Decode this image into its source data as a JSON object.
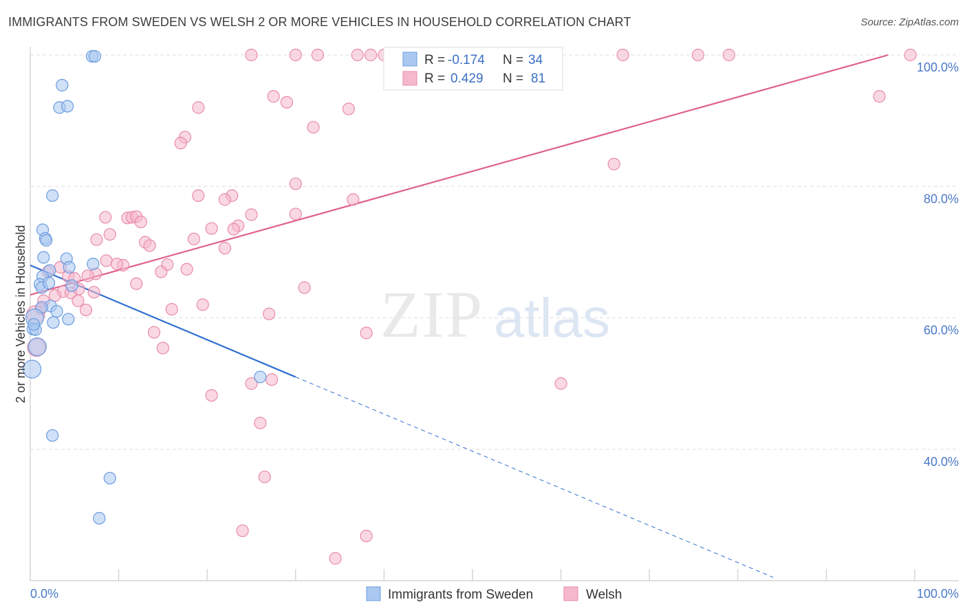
{
  "title": "IMMIGRANTS FROM SWEDEN VS WELSH 2 OR MORE VEHICLES IN HOUSEHOLD CORRELATION CHART",
  "source": "Source: ZipAtlas.com",
  "watermark": {
    "zip": "ZIP",
    "atlas": "atlas"
  },
  "colors": {
    "blue_fill": "#aac8f0",
    "blue_stroke": "#6a9be0",
    "blue_line": "#2f6fd0",
    "pink_fill": "#f5b8cc",
    "pink_stroke": "#e88aa8",
    "pink_line": "#e0608a",
    "tick": "#4a78c8",
    "grid": "#dddddd"
  },
  "legend": {
    "rows": [
      {
        "r_label": "R =",
        "r_value": "-0.174",
        "n_label": "N =",
        "n_value": "34"
      },
      {
        "r_label": "R =",
        "r_value": "0.429",
        "n_label": "N =",
        "n_value": "81"
      }
    ]
  },
  "bottom_legend": [
    "Immigrants from Sweden",
    "Welsh"
  ],
  "chart_data": {
    "type": "scatter",
    "xlabel": "",
    "ylabel": "2 or more Vehicles in Household",
    "xlim": [
      0,
      100
    ],
    "ylim": [
      20,
      100
    ],
    "x_tick_labels": [
      "0.0%",
      "100.0%"
    ],
    "y_tick_labels": [
      "40.0%",
      "60.0%",
      "80.0%",
      "100.0%"
    ],
    "y_ticks": [
      40,
      60,
      80,
      100
    ],
    "grid": true,
    "series": [
      {
        "name": "Immigrants from Sweden",
        "r": -0.174,
        "n": 34,
        "trend": {
          "x0": 0,
          "y0": 68,
          "x1": 30,
          "y1": 51,
          "dash_x1": 84,
          "dash_y1": 20.5
        },
        "points": [
          [
            7,
            99.8
          ],
          [
            7.3,
            99.8
          ],
          [
            3.6,
            95.4
          ],
          [
            3.3,
            92
          ],
          [
            4.2,
            92.2
          ],
          [
            2.5,
            78.6
          ],
          [
            1.4,
            73.4
          ],
          [
            1.7,
            72.1
          ],
          [
            1.8,
            71.8
          ],
          [
            1.5,
            69.2
          ],
          [
            4.1,
            69
          ],
          [
            4.4,
            67.7
          ],
          [
            7.1,
            68.2
          ],
          [
            2.2,
            67.2
          ],
          [
            1.4,
            66.3
          ],
          [
            1.1,
            65.1
          ],
          [
            1.3,
            64.6
          ],
          [
            2.1,
            65.3
          ],
          [
            4.7,
            64.9
          ],
          [
            2.3,
            61.8
          ],
          [
            1.3,
            61.6
          ],
          [
            3.0,
            61
          ],
          [
            4.3,
            59.8
          ],
          [
            2.6,
            59.3
          ],
          [
            0.5,
            60
          ],
          [
            0.3,
            58.3
          ],
          [
            0.6,
            58.2
          ],
          [
            0.8,
            55.6
          ],
          [
            0.2,
            52.2
          ],
          [
            26,
            51
          ],
          [
            2.5,
            42.1
          ],
          [
            9,
            35.6
          ],
          [
            7.8,
            29.5
          ],
          [
            0.4,
            59
          ]
        ]
      },
      {
        "name": "Welsh",
        "r": 0.429,
        "n": 81,
        "trend": {
          "x0": 0,
          "y0": 63.5,
          "x1": 97,
          "y1": 100
        },
        "points": [
          [
            25,
            100
          ],
          [
            30,
            100
          ],
          [
            32.5,
            100
          ],
          [
            37,
            100
          ],
          [
            38.5,
            100
          ],
          [
            40,
            100
          ],
          [
            47,
            100
          ],
          [
            67,
            100
          ],
          [
            75.5,
            100
          ],
          [
            79,
            100
          ],
          [
            99.5,
            100
          ],
          [
            27.5,
            93.7
          ],
          [
            29,
            92.8
          ],
          [
            19,
            92
          ],
          [
            36,
            91.8
          ],
          [
            96,
            93.7
          ],
          [
            32,
            89
          ],
          [
            17.5,
            87.5
          ],
          [
            17,
            86.6
          ],
          [
            66,
            83.4
          ],
          [
            30,
            80.4
          ],
          [
            19,
            78.6
          ],
          [
            22.8,
            78.6
          ],
          [
            36.5,
            78
          ],
          [
            30,
            75.8
          ],
          [
            25,
            75.7
          ],
          [
            8.5,
            75.3
          ],
          [
            11,
            75.2
          ],
          [
            11.5,
            75.3
          ],
          [
            12,
            75.4
          ],
          [
            12.5,
            74.6
          ],
          [
            23.5,
            74
          ],
          [
            20.5,
            73.6
          ],
          [
            23,
            73.5
          ],
          [
            9,
            72.7
          ],
          [
            7.5,
            71.9
          ],
          [
            18.5,
            72
          ],
          [
            13,
            71.5
          ],
          [
            13.5,
            71
          ],
          [
            22,
            70.6
          ],
          [
            8.6,
            68.7
          ],
          [
            10.5,
            68
          ],
          [
            15.5,
            68.1
          ],
          [
            3.4,
            67.7
          ],
          [
            14.8,
            67
          ],
          [
            17.7,
            67.4
          ],
          [
            4.3,
            66.3
          ],
          [
            7.4,
            66.7
          ],
          [
            6.5,
            66.4
          ],
          [
            2.0,
            67
          ],
          [
            5.0,
            66
          ],
          [
            12,
            65.2
          ],
          [
            31,
            64.6
          ],
          [
            3.7,
            64
          ],
          [
            7.2,
            63.9
          ],
          [
            4.6,
            63.8
          ],
          [
            1.5,
            62.6
          ],
          [
            5.4,
            62.6
          ],
          [
            6.3,
            61.2
          ],
          [
            1.2,
            61.4
          ],
          [
            19.5,
            62
          ],
          [
            16,
            61.3
          ],
          [
            27,
            60.6
          ],
          [
            0.6,
            60.5
          ],
          [
            14,
            57.8
          ],
          [
            38,
            57.7
          ],
          [
            15,
            55.4
          ],
          [
            0.7,
            55.5
          ],
          [
            27.3,
            50.6
          ],
          [
            25,
            50
          ],
          [
            60,
            50
          ],
          [
            20.5,
            48.2
          ],
          [
            26,
            44
          ],
          [
            26.5,
            35.8
          ],
          [
            24,
            27.6
          ],
          [
            38,
            26.8
          ],
          [
            34.5,
            23.4
          ],
          [
            22,
            78
          ],
          [
            9.8,
            68.2
          ],
          [
            5.5,
            64.4
          ],
          [
            2.8,
            63.4
          ]
        ]
      }
    ]
  }
}
